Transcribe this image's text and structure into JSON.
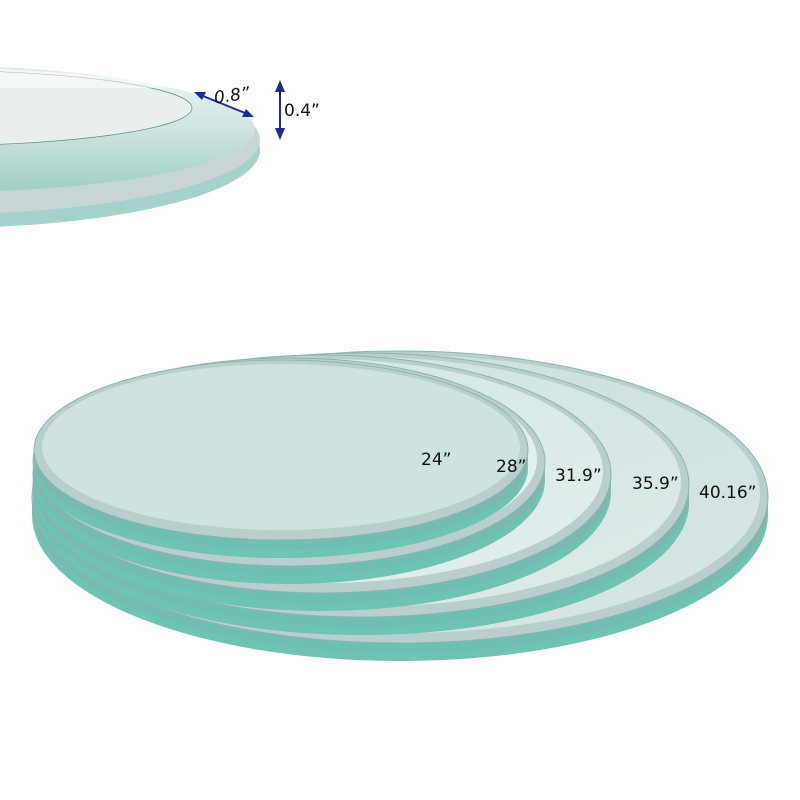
{
  "detail": {
    "bevel_width": "0.8”",
    "thickness": "0.4”",
    "arrow_color": "#1f2a9a"
  },
  "sizes": [
    {
      "label": "40.16”"
    },
    {
      "label": "35.9”"
    },
    {
      "label": "31.9”"
    },
    {
      "label": "28”"
    },
    {
      "label": "24”"
    }
  ],
  "colors": {
    "glass_top": "#e3f1f0",
    "glass_edge": "#7fc4b8",
    "bevel": "#b9cfcd"
  }
}
